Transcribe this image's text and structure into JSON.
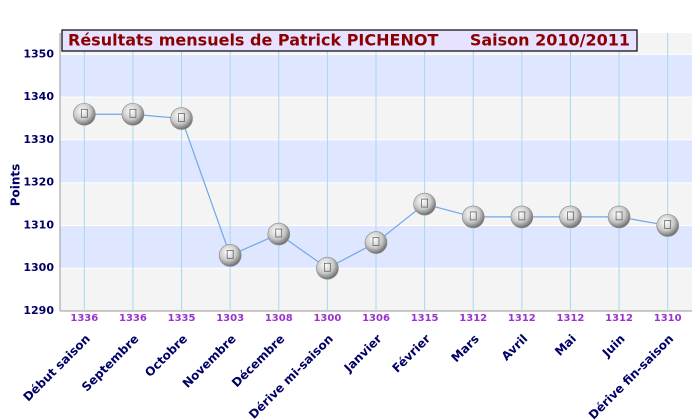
{
  "chart_data": {
    "type": "line",
    "title": "Résultats mensuels de  Patrick  PICHENOT",
    "subtitle": "Saison 2010/2011",
    "y_label": "Points",
    "categories": [
      "Début saison",
      "Septembre",
      "Octobre",
      "Novembre",
      "Décembre",
      "Dérive mi-saison",
      "Janvier",
      "Février",
      "Mars",
      "Avril",
      "Mai",
      "Juin",
      "Dérive fin-saison"
    ],
    "values": [
      1336,
      1336,
      1335,
      1303,
      1308,
      1300,
      1306,
      1315,
      1312,
      1312,
      1312,
      1312,
      1310
    ],
    "color": "#6fa8e8",
    "ylim": [
      1290,
      1355
    ],
    "yticks": [
      1290,
      1300,
      1310,
      1320,
      1330,
      1340,
      1350
    ],
    "grid": true
  }
}
